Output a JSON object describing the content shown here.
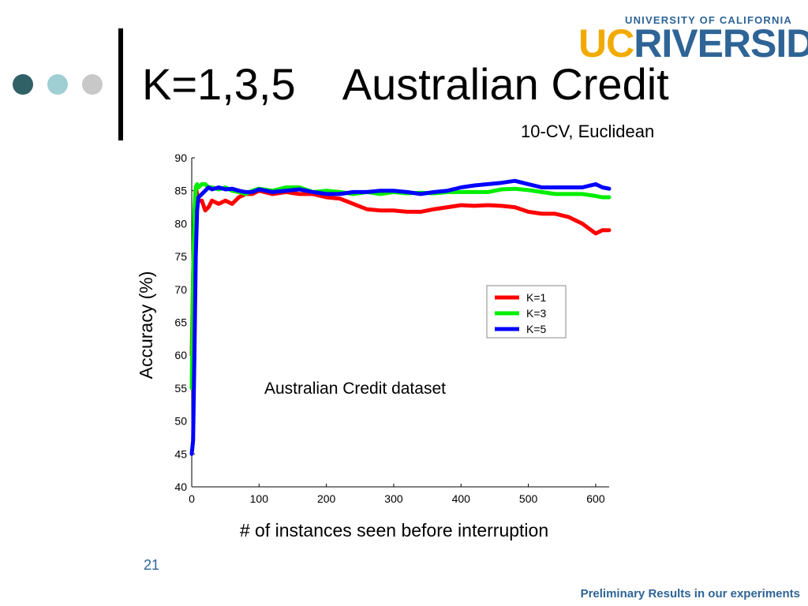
{
  "slide": {
    "title": "K=1,3,5    Australian Credit",
    "subtitle": "10-CV, Euclidean",
    "page_number": "21",
    "footer": "Preliminary Results in our experiments",
    "logo": {
      "top_text": "UNIVERSITY OF CALIFORNIA",
      "uc": "UC",
      "riverside": "RIVERSIDE"
    },
    "bullet_colors": [
      "#2f6166",
      "#9fcfd3",
      "#c8c8c8"
    ]
  },
  "chart_data": {
    "type": "line",
    "title": "",
    "xlabel": "# of instances seen before interruption",
    "ylabel": "Accuracy (%)",
    "annotation": "Australian Credit dataset",
    "xlim": [
      0,
      620
    ],
    "ylim": [
      40,
      90
    ],
    "xticks": [
      0,
      100,
      200,
      300,
      400,
      500,
      600
    ],
    "yticks": [
      40,
      45,
      50,
      55,
      60,
      65,
      70,
      75,
      80,
      85,
      90
    ],
    "grid": false,
    "legend_position": "center-right",
    "series": [
      {
        "name": "K=1",
        "color": "#ff0000",
        "x": [
          0,
          2,
          4,
          6,
          8,
          10,
          15,
          20,
          25,
          30,
          40,
          50,
          60,
          70,
          80,
          90,
          100,
          120,
          140,
          160,
          180,
          200,
          220,
          240,
          260,
          280,
          300,
          320,
          340,
          360,
          380,
          400,
          420,
          440,
          460,
          480,
          500,
          520,
          540,
          560,
          580,
          600,
          610,
          620
        ],
        "y": [
          60,
          72,
          80,
          85.5,
          84.5,
          83.5,
          83.5,
          82,
          82.5,
          83.5,
          83,
          83.5,
          83,
          84,
          84.5,
          84.5,
          85,
          84.5,
          84.8,
          84.5,
          84.5,
          84,
          83.8,
          83,
          82.2,
          82,
          82,
          81.8,
          81.8,
          82.2,
          82.5,
          82.8,
          82.7,
          82.8,
          82.7,
          82.5,
          81.8,
          81.5,
          81.5,
          81,
          80,
          78.5,
          79,
          79
        ]
      },
      {
        "name": "K=3",
        "color": "#00ee00",
        "x": [
          0,
          2,
          4,
          6,
          8,
          10,
          15,
          20,
          25,
          30,
          40,
          50,
          60,
          70,
          80,
          90,
          100,
          120,
          140,
          160,
          180,
          200,
          220,
          240,
          260,
          280,
          300,
          320,
          340,
          360,
          380,
          400,
          420,
          440,
          460,
          480,
          500,
          520,
          540,
          560,
          580,
          600,
          610,
          620
        ],
        "y": [
          55,
          72,
          82,
          85.5,
          86,
          85.5,
          86,
          86,
          85.5,
          85.5,
          85.2,
          85.5,
          85,
          84.8,
          84.5,
          85,
          85.3,
          85,
          85.5,
          85.5,
          84.8,
          85,
          84.8,
          84.5,
          84.8,
          84.5,
          84.8,
          84.6,
          84.7,
          84.6,
          84.8,
          84.8,
          84.8,
          84.8,
          85.2,
          85.3,
          85.1,
          84.8,
          84.5,
          84.5,
          84.5,
          84.2,
          84,
          84
        ]
      },
      {
        "name": "K=5",
        "color": "#0000ff",
        "x": [
          0,
          2,
          4,
          6,
          8,
          10,
          15,
          20,
          25,
          30,
          40,
          50,
          60,
          70,
          80,
          90,
          100,
          120,
          140,
          160,
          180,
          200,
          220,
          240,
          260,
          280,
          300,
          320,
          340,
          360,
          380,
          400,
          420,
          440,
          460,
          480,
          500,
          520,
          540,
          560,
          580,
          600,
          610,
          620
        ],
        "y": [
          45,
          47,
          60,
          75,
          82,
          84,
          84.5,
          85,
          85.5,
          85.2,
          85.5,
          85.2,
          85.3,
          85,
          84.8,
          84.8,
          85.2,
          84.8,
          85,
          85.2,
          84.8,
          84.5,
          84.5,
          84.8,
          84.8,
          85,
          85,
          84.8,
          84.5,
          84.8,
          85,
          85.5,
          85.8,
          86,
          86.2,
          86.5,
          86,
          85.5,
          85.5,
          85.5,
          85.5,
          86,
          85.5,
          85.3
        ]
      }
    ]
  }
}
